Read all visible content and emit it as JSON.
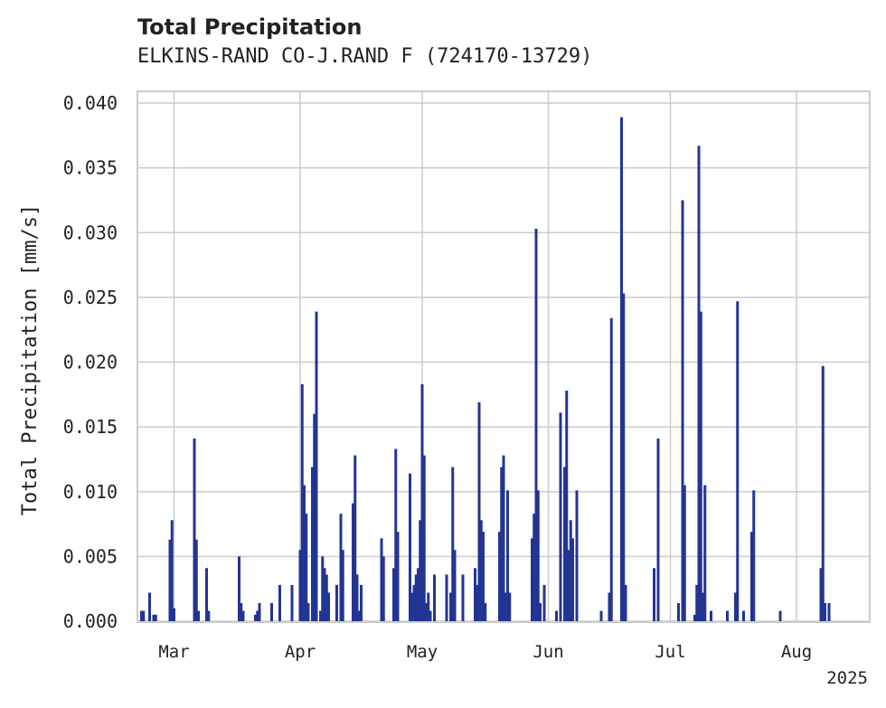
{
  "chart_data": {
    "type": "bar",
    "title": "Total Precipitation",
    "subtitle": "ELKINS-RAND CO-J.RAND F (724170-13729)",
    "xlabel": "",
    "ylabel": "Total Precipitation [mm/s]",
    "ylim": [
      0,
      0.0408
    ],
    "xlim": [
      "2025-02-20",
      "2025-08-19"
    ],
    "grid": true,
    "yticks": [
      "0.000",
      "0.005",
      "0.010",
      "0.015",
      "0.020",
      "0.025",
      "0.030",
      "0.035",
      "0.040"
    ],
    "xticks": [
      {
        "date": "2025-03-01",
        "label": "Mar"
      },
      {
        "date": "2025-04-01",
        "label": "Apr"
      },
      {
        "date": "2025-05-01",
        "label": "May"
      },
      {
        "date": "2025-06-01",
        "label": "Jun"
      },
      {
        "date": "2025-07-01",
        "label": "Jul"
      },
      {
        "date": "2025-08-01",
        "label": "Aug"
      }
    ],
    "xyear_label": "2025",
    "bar_color": "#233593",
    "points": [
      [
        "2025-02-21",
        0.0008
      ],
      [
        "2025-02-21T12",
        0.0008
      ],
      [
        "2025-02-23",
        0.0022
      ],
      [
        "2025-02-24",
        0.0005
      ],
      [
        "2025-02-24T12",
        0.0005
      ],
      [
        "2025-02-28",
        0.0063
      ],
      [
        "2025-02-28T12",
        0.0078
      ],
      [
        "2025-03-01",
        0.001
      ],
      [
        "2025-03-06",
        0.0141
      ],
      [
        "2025-03-06T12",
        0.0063
      ],
      [
        "2025-03-07",
        0.0008
      ],
      [
        "2025-03-09",
        0.0041
      ],
      [
        "2025-03-09T12",
        0.0008
      ],
      [
        "2025-03-17",
        0.005
      ],
      [
        "2025-03-17T12",
        0.0014
      ],
      [
        "2025-03-18",
        0.0008
      ],
      [
        "2025-03-21",
        0.0005
      ],
      [
        "2025-03-21T12",
        0.0008
      ],
      [
        "2025-03-22",
        0.0014
      ],
      [
        "2025-03-25",
        0.0014
      ],
      [
        "2025-03-27",
        0.0028
      ],
      [
        "2025-03-30",
        0.0028
      ],
      [
        "2025-04-01",
        0.0055
      ],
      [
        "2025-04-01T12",
        0.0183
      ],
      [
        "2025-04-02",
        0.0105
      ],
      [
        "2025-04-02T12",
        0.0083
      ],
      [
        "2025-04-03",
        0.0014
      ],
      [
        "2025-04-04",
        0.0119
      ],
      [
        "2025-04-04T12",
        0.016
      ],
      [
        "2025-04-05",
        0.0239
      ],
      [
        "2025-04-06",
        0.0008
      ],
      [
        "2025-04-06T12",
        0.005
      ],
      [
        "2025-04-07",
        0.0041
      ],
      [
        "2025-04-07T12",
        0.0036
      ],
      [
        "2025-04-08",
        0.0022
      ],
      [
        "2025-04-10",
        0.0028
      ],
      [
        "2025-04-11",
        0.0083
      ],
      [
        "2025-04-11T12",
        0.0055
      ],
      [
        "2025-04-14",
        0.0091
      ],
      [
        "2025-04-14T12",
        0.0128
      ],
      [
        "2025-04-15",
        0.0036
      ],
      [
        "2025-04-15T12",
        0.0008
      ],
      [
        "2025-04-16",
        0.0028
      ],
      [
        "2025-04-21",
        0.0064
      ],
      [
        "2025-04-21T12",
        0.005
      ],
      [
        "2025-04-24",
        0.0041
      ],
      [
        "2025-04-24T12",
        0.0133
      ],
      [
        "2025-04-25",
        0.0069
      ],
      [
        "2025-04-28",
        0.0114
      ],
      [
        "2025-04-28T12",
        0.0022
      ],
      [
        "2025-04-29",
        0.0028
      ],
      [
        "2025-04-29T12",
        0.0036
      ],
      [
        "2025-04-30",
        0.0041
      ],
      [
        "2025-04-30T12",
        0.0078
      ],
      [
        "2025-05-01",
        0.0183
      ],
      [
        "2025-05-01T12",
        0.0128
      ],
      [
        "2025-05-02",
        0.0014
      ],
      [
        "2025-05-02T12",
        0.0022
      ],
      [
        "2025-05-03",
        0.0008
      ],
      [
        "2025-05-04",
        0.0036
      ],
      [
        "2025-05-07",
        0.0036
      ],
      [
        "2025-05-08",
        0.0022
      ],
      [
        "2025-05-08T12",
        0.0119
      ],
      [
        "2025-05-09",
        0.0055
      ],
      [
        "2025-05-11",
        0.0036
      ],
      [
        "2025-05-14",
        0.0041
      ],
      [
        "2025-05-14T12",
        0.0028
      ],
      [
        "2025-05-15",
        0.0169
      ],
      [
        "2025-05-15T12",
        0.0078
      ],
      [
        "2025-05-16",
        0.0069
      ],
      [
        "2025-05-16T12",
        0.0014
      ],
      [
        "2025-05-20",
        0.0069
      ],
      [
        "2025-05-20T12",
        0.0119
      ],
      [
        "2025-05-21",
        0.0128
      ],
      [
        "2025-05-21T12",
        0.0022
      ],
      [
        "2025-05-22",
        0.0101
      ],
      [
        "2025-05-22T12",
        0.0022
      ],
      [
        "2025-05-28",
        0.0064
      ],
      [
        "2025-05-28T12",
        0.0083
      ],
      [
        "2025-05-29",
        0.0303
      ],
      [
        "2025-05-29T12",
        0.0101
      ],
      [
        "2025-05-30",
        0.0014
      ],
      [
        "2025-05-31",
        0.0028
      ],
      [
        "2025-06-03",
        0.0008
      ],
      [
        "2025-06-04",
        0.0161
      ],
      [
        "2025-06-05",
        0.0119
      ],
      [
        "2025-06-05T12",
        0.0178
      ],
      [
        "2025-06-06",
        0.0055
      ],
      [
        "2025-06-06T12",
        0.0078
      ],
      [
        "2025-06-07",
        0.0064
      ],
      [
        "2025-06-08",
        0.0101
      ],
      [
        "2025-06-14",
        0.0008
      ],
      [
        "2025-06-16",
        0.0022
      ],
      [
        "2025-06-16T12",
        0.0234
      ],
      [
        "2025-06-19",
        0.0389
      ],
      [
        "2025-06-19T12",
        0.0253
      ],
      [
        "2025-06-20",
        0.0028
      ],
      [
        "2025-06-27",
        0.0041
      ],
      [
        "2025-06-28",
        0.0141
      ],
      [
        "2025-07-03",
        0.0014
      ],
      [
        "2025-07-04",
        0.0325
      ],
      [
        "2025-07-04T12",
        0.0105
      ],
      [
        "2025-07-07",
        0.0005
      ],
      [
        "2025-07-07T12",
        0.0028
      ],
      [
        "2025-07-08",
        0.0367
      ],
      [
        "2025-07-08T12",
        0.0239
      ],
      [
        "2025-07-09",
        0.0022
      ],
      [
        "2025-07-09T12",
        0.0105
      ],
      [
        "2025-07-11",
        0.0008
      ],
      [
        "2025-07-15",
        0.0008
      ],
      [
        "2025-07-17",
        0.0022
      ],
      [
        "2025-07-17T12",
        0.0247
      ],
      [
        "2025-07-19",
        0.0008
      ],
      [
        "2025-07-21",
        0.0069
      ],
      [
        "2025-07-21T12",
        0.0101
      ],
      [
        "2025-07-28",
        0.0008
      ],
      [
        "2025-08-07",
        0.0041
      ],
      [
        "2025-08-07T12",
        0.0197
      ],
      [
        "2025-08-08",
        0.0014
      ],
      [
        "2025-08-09",
        0.0014
      ]
    ]
  }
}
